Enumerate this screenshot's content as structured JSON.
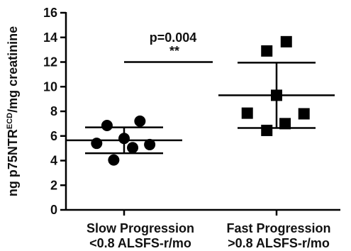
{
  "chart_data": {
    "type": "scatter",
    "title": "",
    "ylabel": {
      "main": "ng p75NTR",
      "superscript": "ECD",
      "suffix": "/mg creatinine"
    },
    "ylim": [
      0,
      16
    ],
    "yticks": [
      0,
      2,
      4,
      6,
      8,
      10,
      12,
      14,
      16
    ],
    "grid": false,
    "categories": [
      {
        "line1": "Slow Progression",
        "line2": "<0.8 ALSFS-r/mo"
      },
      {
        "line1": "Fast Progression",
        "line2": ">0.8 ALSFS-r/mo"
      }
    ],
    "series": [
      {
        "marker": "circle",
        "color": "#000000",
        "mean": 5.65,
        "sd": 1.05,
        "points": [
          {
            "offset": -0.45,
            "y": 5.4
          },
          {
            "offset": -0.28,
            "y": 6.85
          },
          {
            "offset": -0.17,
            "y": 4.05
          },
          {
            "offset": 0.0,
            "y": 5.8
          },
          {
            "offset": 0.14,
            "y": 5.05
          },
          {
            "offset": 0.26,
            "y": 7.2
          },
          {
            "offset": 0.42,
            "y": 5.3
          }
        ]
      },
      {
        "marker": "square",
        "color": "#000000",
        "mean": 9.3,
        "sd": 2.65,
        "points": [
          {
            "offset": -0.48,
            "y": 7.85
          },
          {
            "offset": -0.16,
            "y": 12.9
          },
          {
            "offset": -0.16,
            "y": 6.45
          },
          {
            "offset": 0.0,
            "y": 9.3
          },
          {
            "offset": 0.14,
            "y": 7.0
          },
          {
            "offset": 0.16,
            "y": 13.65
          },
          {
            "offset": 0.45,
            "y": 7.8
          }
        ]
      }
    ],
    "annotation": {
      "text": "p=0.004",
      "stars": "**",
      "y": 12.0
    }
  }
}
